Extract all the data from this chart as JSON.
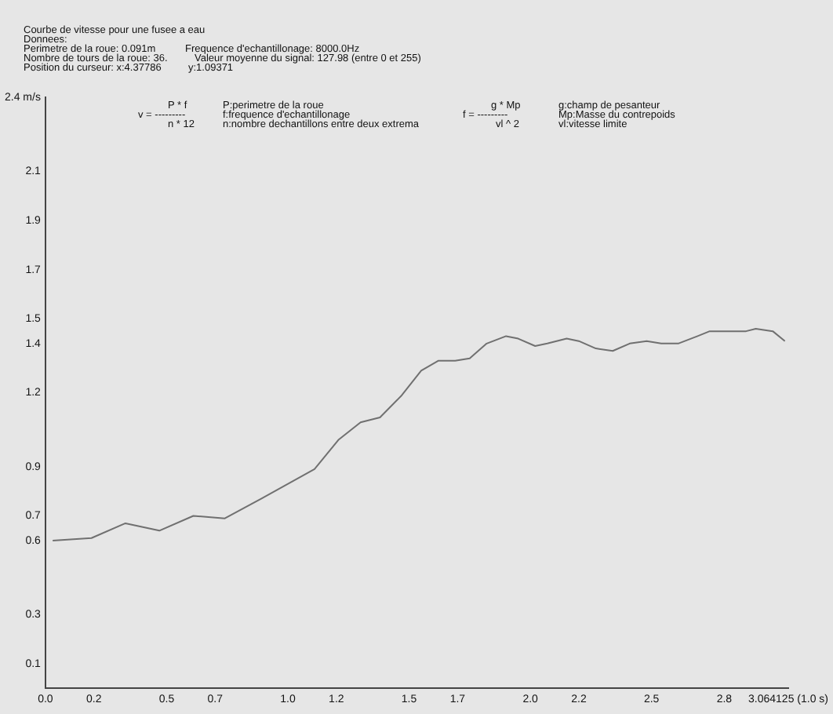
{
  "chart_data": {
    "type": "line",
    "title": "Courbe de vitesse pour une fusee a eau",
    "annotations": [
      "Donnees:",
      "Perimetre de la roue: 0.091m",
      "Frequence d'echantillonage: 8000.0Hz",
      "Nombre de tours de la roue: 36.",
      "Valeur moyenne du signal: 127.98 (entre 0 et 255)",
      "Position du curseur: x:4.37786",
      "y:1.09371",
      "P * f",
      "v = ---------",
      "n * 12",
      "P:perimetre de la roue",
      "f:frequence d'echantillonage",
      "n:nombre dechantillons entre deux extrema",
      "g * Mp",
      "f = ---------",
      "vl ^ 2",
      "g:champ de pesanteur",
      "Mp:Masse du contrepoids",
      "vl:vitesse limite"
    ],
    "x": [
      0.03,
      0.19,
      0.33,
      0.47,
      0.61,
      0.74,
      0.89,
      1.11,
      1.21,
      1.3,
      1.38,
      1.47,
      1.55,
      1.62,
      1.69,
      1.75,
      1.82,
      1.9,
      1.95,
      2.02,
      2.07,
      2.15,
      2.2,
      2.27,
      2.34,
      2.41,
      2.48,
      2.54,
      2.61,
      2.69,
      2.74,
      2.89,
      2.93,
      3.0,
      3.05
    ],
    "series": [
      {
        "color": "#707070",
        "values": [
          0.6,
          0.61,
          0.67,
          0.64,
          0.7,
          0.69,
          0.77,
          0.89,
          1.01,
          1.08,
          1.1,
          1.19,
          1.29,
          1.33,
          1.33,
          1.34,
          1.4,
          1.43,
          1.42,
          1.39,
          1.4,
          1.42,
          1.41,
          1.38,
          1.37,
          1.4,
          1.41,
          1.4,
          1.4,
          1.43,
          1.45,
          1.45,
          1.46,
          1.45,
          1.41
        ]
      }
    ],
    "xlim": [
      0,
      3.064125
    ],
    "xticks": [
      {
        "value": 0,
        "label": "0.0"
      },
      {
        "value": 0.2,
        "label": "0.2"
      },
      {
        "value": 0.5,
        "label": "0.5"
      },
      {
        "value": 0.7,
        "label": "0.7"
      },
      {
        "value": 1.0,
        "label": "1.0"
      },
      {
        "value": 1.2,
        "label": "1.2"
      },
      {
        "value": 1.5,
        "label": "1.5"
      },
      {
        "value": 1.7,
        "label": "1.7"
      },
      {
        "value": 2.0,
        "label": "2.0"
      },
      {
        "value": 2.2,
        "label": "2.2"
      },
      {
        "value": 2.5,
        "label": "2.5"
      },
      {
        "value": 2.8,
        "label": "2.8"
      },
      {
        "value": 3.064125,
        "label": "3.064125 (1.0 s)"
      }
    ],
    "ylim": [
      0,
      2.4
    ],
    "yticks": [
      0.1,
      0.3,
      0.6,
      0.7,
      0.9,
      1.2,
      1.4,
      1.5,
      1.7,
      1.9,
      2.1,
      {
        "value": 2.4,
        "label": "2.4 m/s"
      }
    ],
    "grid": false,
    "legend": false,
    "marker": "none",
    "line_style": "solid"
  }
}
